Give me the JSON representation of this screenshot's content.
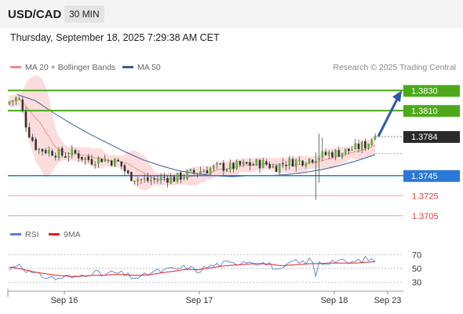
{
  "header": {
    "symbol": "USD/CAD",
    "timeframe": "30 MIN"
  },
  "timestamp": "Thursday, September 18, 2025 7:29:38 AM CET",
  "legend_main": {
    "items": [
      {
        "label": "MA 20 + Bollinger Bands",
        "color": "#f08a8a"
      },
      {
        "label": "MA 50",
        "color": "#3a5a9a"
      }
    ],
    "credit": "Research © 2025 Trading Central"
  },
  "legend_rsi": {
    "items": [
      {
        "label": "RSI",
        "color": "#5b7fd4"
      },
      {
        "label": "9MA",
        "color": "#e02020"
      }
    ]
  },
  "chart_data": [
    {
      "type": "candlestick",
      "price_ylim": [
        1.3697,
        1.3842
      ],
      "levels": [
        {
          "label": "1.3830",
          "value": 1.383,
          "kind": "resistance",
          "color": "#4caa1a"
        },
        {
          "label": "1.3810",
          "value": 1.381,
          "kind": "resistance",
          "color": "#4caa1a"
        },
        {
          "label": "1.3784",
          "value": 1.3784,
          "kind": "last",
          "color": "#2a2a2a"
        },
        {
          "label": "1.3745",
          "value": 1.3745,
          "kind": "pivot",
          "color": "#2a78d8"
        },
        {
          "label": "1.3725",
          "value": 1.3725,
          "kind": "support",
          "color": "#e04040"
        },
        {
          "label": "1.3705",
          "value": 1.3705,
          "kind": "support",
          "color": "#e04040"
        }
      ],
      "x_ticks": [
        "Sep 16",
        "Sep 17",
        "Sep 18",
        "Sep 23"
      ],
      "close_path": [
        1.3819,
        1.3823,
        1.379,
        1.3772,
        1.377,
        1.3768,
        1.3765,
        1.3768,
        1.3763,
        1.376,
        1.3762,
        1.376,
        1.3758,
        1.3745,
        1.3742,
        1.374,
        1.3741,
        1.3743,
        1.3742,
        1.3745,
        1.3748,
        1.375,
        1.3752,
        1.3754,
        1.3753,
        1.3755,
        1.3756,
        1.3757,
        1.3757,
        1.3753,
        1.3758,
        1.3759,
        1.376,
        1.3762,
        1.3765,
        1.3767,
        1.3768,
        1.377,
        1.3773,
        1.3776,
        1.3784
      ],
      "ma50_path": [
        1.3826,
        1.382,
        1.3808,
        1.3797,
        1.3787,
        1.3778,
        1.3769,
        1.3761,
        1.3755,
        1.375,
        1.3747,
        1.3745,
        1.3744,
        1.3745,
        1.3745,
        1.3746,
        1.3748,
        1.3751,
        1.3755,
        1.376,
        1.3766
      ],
      "projection": {
        "from": 1.3784,
        "to": 1.383
      }
    },
    {
      "type": "line",
      "title": "RSI",
      "ylim": [
        20,
        80
      ],
      "y_ticks": [
        "70",
        "50",
        "30"
      ],
      "series": [
        {
          "name": "RSI",
          "values": [
            48,
            58,
            45,
            40,
            38,
            35,
            38,
            36,
            42,
            45,
            40,
            44,
            42,
            38,
            36,
            44,
            46,
            48,
            50,
            52,
            46,
            52,
            55,
            58,
            56,
            62,
            60,
            58,
            54,
            44,
            60,
            58,
            62,
            56,
            60,
            62,
            58,
            60,
            64,
            62
          ]
        },
        {
          "name": "9MA",
          "values": [
            52,
            50,
            47,
            44,
            42,
            40,
            39,
            38,
            39,
            40,
            40,
            41,
            41,
            40,
            40,
            41,
            43,
            45,
            47,
            49,
            48,
            50,
            52,
            54,
            55,
            56,
            57,
            57,
            56,
            54,
            55,
            56,
            57,
            57,
            58,
            58,
            58,
            58,
            59,
            60
          ]
        }
      ]
    }
  ]
}
